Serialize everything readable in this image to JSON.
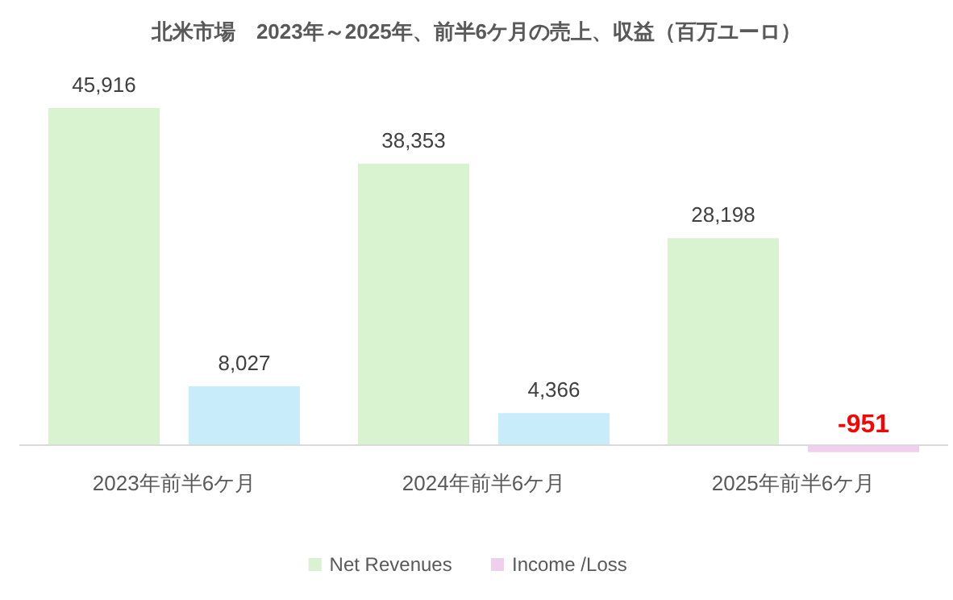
{
  "chart_data": {
    "type": "bar",
    "title": "北米市場　2023年～2025年、前半6ケ月の売上、収益（百万ユーロ）",
    "categories": [
      "2023年前半6ケ月",
      "2024年前半6ケ月",
      "2025年前半6ケ月"
    ],
    "series": [
      {
        "name": "Net Revenues",
        "color": "#d9f2d0",
        "values": [
          45916,
          38353,
          28198
        ],
        "value_labels": [
          "45,916",
          "38,353",
          "28,198"
        ]
      },
      {
        "name": "Income /Loss",
        "color": "#f0cfee",
        "colors": [
          "#c9ecfa",
          "#c9ecfa",
          "#f0cfee"
        ],
        "values": [
          8027,
          4366,
          -951
        ],
        "value_labels": [
          "8,027",
          "4,366",
          "-951"
        ]
      }
    ],
    "legend": "bottom"
  }
}
